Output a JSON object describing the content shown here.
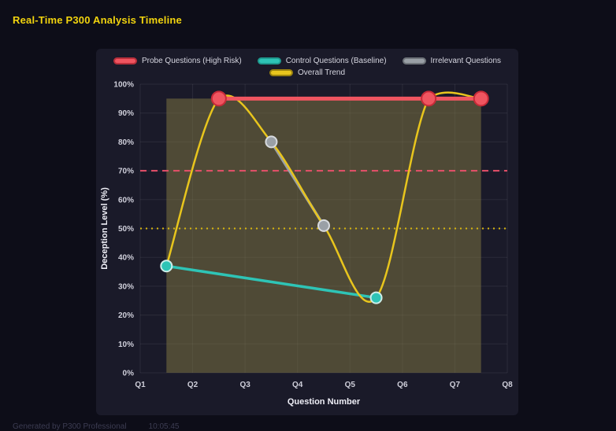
{
  "header": {
    "title": "Real-Time P300 Analysis Timeline"
  },
  "footer": {
    "generated": "Generated by P300 Professional",
    "time": "10:05:45"
  },
  "chart_data": {
    "type": "line",
    "title": "Real-Time P300 Analysis Timeline",
    "xlabel": "Question Number",
    "ylabel": "Deception Level (%)",
    "x_ticks": [
      "Q1",
      "Q2",
      "Q3",
      "Q4",
      "Q5",
      "Q6",
      "Q7",
      "Q8"
    ],
    "x_range": [
      1,
      8
    ],
    "y_ticks": [
      "0%",
      "10%",
      "20%",
      "30%",
      "40%",
      "50%",
      "60%",
      "70%",
      "80%",
      "90%",
      "100%"
    ],
    "y_range": [
      0,
      100
    ],
    "grid": true,
    "grid_color": "rgba(255,255,255,0.08)",
    "background": "#1a1a29",
    "highlight_band": {
      "x_from": 1.5,
      "x_to": 7.5,
      "y_from": 0,
      "y_to": 95,
      "color": "rgba(131,121,68,0.5)"
    },
    "thresholds": [
      {
        "value": 70,
        "style": "dashed",
        "color": "#e8506a"
      },
      {
        "value": 50,
        "style": "dotted",
        "color": "#d9b70e"
      }
    ],
    "series": [
      {
        "key": "probe",
        "name": "Probe Questions (High Risk)",
        "color": "#ef5560",
        "legend_border": "#b92f3b",
        "point_stroke": "#c62a38",
        "line_width": 5,
        "point_radius": 9,
        "smooth": false,
        "points": [
          [
            2.5,
            95
          ],
          [
            6.5,
            95
          ],
          [
            7.5,
            95
          ]
        ]
      },
      {
        "key": "control",
        "name": "Control Questions (Baseline)",
        "color": "#2ec4b6",
        "legend_border": "#1f9a8f",
        "point_stroke": "#cdeeea",
        "line_width": 3.5,
        "point_radius": 7,
        "smooth": false,
        "points": [
          [
            1.5,
            37
          ],
          [
            5.5,
            26
          ]
        ]
      },
      {
        "key": "irrelevant",
        "name": "Irrelevant Questions",
        "color": "#9aa0a6",
        "legend_border": "#6f747a",
        "point_stroke": "#d7dade",
        "line_width": 3.5,
        "point_radius": 7,
        "smooth": false,
        "points": [
          [
            3.5,
            80
          ],
          [
            4.5,
            51
          ]
        ]
      },
      {
        "key": "trend",
        "name": "Overall Trend",
        "color": "#e8c51d",
        "legend_border": "#9a820f",
        "point_stroke": "#e8c51d",
        "line_width": 2.5,
        "point_radius": 0,
        "smooth": true,
        "points": [
          [
            1.5,
            37
          ],
          [
            2.5,
            95
          ],
          [
            3.5,
            80
          ],
          [
            4.5,
            51
          ],
          [
            5.5,
            26
          ],
          [
            6.5,
            95
          ],
          [
            7.5,
            95
          ]
        ]
      }
    ],
    "legend_rows": [
      [
        "probe",
        "control",
        "irrelevant"
      ],
      [
        "trend"
      ]
    ],
    "legend_position": "top"
  }
}
